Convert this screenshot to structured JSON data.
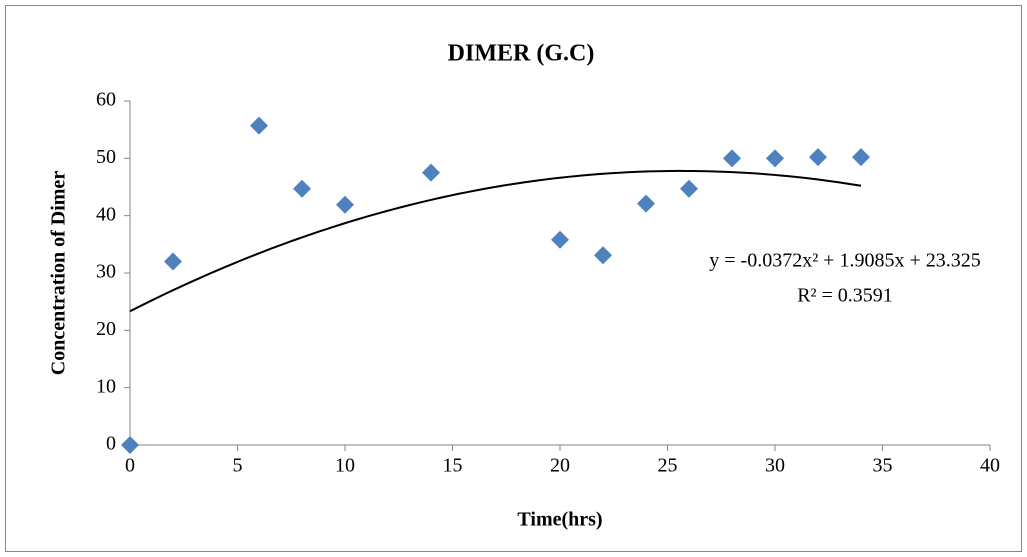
{
  "chart_data": {
    "type": "scatter",
    "title": "DIMER (G.C)",
    "x_label": "Time(hrs)",
    "y_label": "Concentration of Dimer",
    "series": [
      {
        "name": "Dimer",
        "color": "#4f81bd",
        "x": [
          0,
          2,
          6,
          8,
          10,
          14,
          20,
          22,
          24,
          26,
          28,
          30,
          32,
          34
        ],
        "values": [
          0,
          32,
          55.7,
          44.7,
          41.9,
          47.5,
          35.8,
          33.1,
          42.1,
          44.7,
          50,
          50,
          50.2,
          50.2
        ]
      }
    ],
    "trendline": {
      "type": "polynomial",
      "coefficients": [
        -0.0372,
        1.9085,
        23.325
      ],
      "color": "#000000",
      "equation": "y = -0.0372x² + 1.9085x + 23.325",
      "r_squared": "R² = 0.3591"
    },
    "xlim": [
      0,
      40
    ],
    "xticks": [
      0,
      5,
      10,
      15,
      20,
      25,
      30,
      35,
      40
    ],
    "ylim": [
      0,
      60
    ],
    "yticks": [
      0,
      10,
      20,
      30,
      40,
      50,
      60
    ],
    "grid": false
  }
}
